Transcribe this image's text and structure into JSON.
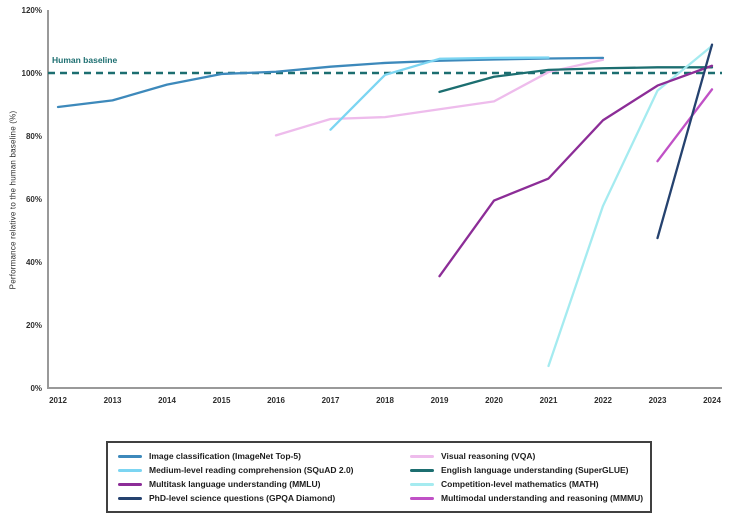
{
  "figure": {
    "baseline_label": "Human baseline"
  },
  "chart_data": {
    "type": "line",
    "title": "",
    "xlabel": "",
    "ylabel": "Performance relative to the human baseline (%)",
    "x_ticks": [
      2012,
      2013,
      2014,
      2015,
      2016,
      2017,
      2018,
      2019,
      2020,
      2021,
      2022,
      2023,
      2024
    ],
    "y_ticks": [
      0,
      20,
      40,
      60,
      80,
      100,
      120
    ],
    "y_tick_suffix": "%",
    "xlim": [
      2012,
      2024
    ],
    "ylim": [
      0,
      120
    ],
    "grid": false,
    "legend_position": "bottom-boxed-two-columns",
    "baseline": {
      "label": "Human baseline",
      "value": 100,
      "color": "#1c6e70",
      "style": "dashed"
    },
    "series": [
      {
        "name": "Image classification (ImageNet Top-5)",
        "slug": "imagenet-top5",
        "color": "#3d89bb",
        "points": [
          [
            2012,
            89.2
          ],
          [
            2013,
            91.3
          ],
          [
            2014,
            96.3
          ],
          [
            2015,
            99.7
          ],
          [
            2016,
            100.4
          ],
          [
            2017,
            102.0
          ],
          [
            2018,
            103.2
          ],
          [
            2019,
            103.9
          ],
          [
            2020,
            104.3
          ],
          [
            2021,
            104.6
          ],
          [
            2022,
            104.8
          ]
        ]
      },
      {
        "name": "Medium-level reading comprehension (SQuAD 2.0)",
        "slug": "squad-2-0",
        "color": "#7cd5f2",
        "points": [
          [
            2017,
            82.0
          ],
          [
            2018,
            99.4
          ],
          [
            2019,
            104.5
          ],
          [
            2020,
            104.8
          ],
          [
            2021,
            104.9
          ]
        ]
      },
      {
        "name": "Multitask language understanding (MMLU)",
        "slug": "mmlu",
        "color": "#8c2d97",
        "points": [
          [
            2019,
            35.5
          ],
          [
            2020,
            59.5
          ],
          [
            2021,
            66.5
          ],
          [
            2022,
            85.0
          ],
          [
            2023,
            96.0
          ],
          [
            2024,
            102.3
          ]
        ]
      },
      {
        "name": "PhD-level science questions (GPQA Diamond)",
        "slug": "gpqa-diamond",
        "color": "#25426f",
        "points": [
          [
            2023,
            47.6
          ],
          [
            2024,
            109.0
          ]
        ]
      },
      {
        "name": "Visual reasoning (VQA)",
        "slug": "vqa",
        "color": "#eebcec",
        "points": [
          [
            2016,
            80.2
          ],
          [
            2017,
            85.4
          ],
          [
            2018,
            86.0
          ],
          [
            2019,
            88.5
          ],
          [
            2020,
            91.0
          ],
          [
            2021,
            100.3
          ],
          [
            2022,
            104.2
          ]
        ]
      },
      {
        "name": "English language understanding (SuperGLUE)",
        "slug": "superglue",
        "color": "#1c6e70",
        "points": [
          [
            2019,
            94.0
          ],
          [
            2020,
            98.8
          ],
          [
            2021,
            101.0
          ],
          [
            2022,
            101.5
          ],
          [
            2023,
            101.8
          ],
          [
            2024,
            101.8
          ]
        ]
      },
      {
        "name": "Competition-level mathematics (MATH)",
        "slug": "math",
        "color": "#a5ebf0",
        "points": [
          [
            2021,
            7.0
          ],
          [
            2022,
            57.8
          ],
          [
            2023,
            94.4
          ],
          [
            2024,
            108.6
          ]
        ]
      },
      {
        "name": "Multimodal understanding and reasoning (MMMU)",
        "slug": "mmmu",
        "color": "#c051c6",
        "points": [
          [
            2023,
            72.0
          ],
          [
            2024,
            94.8
          ]
        ]
      }
    ]
  }
}
